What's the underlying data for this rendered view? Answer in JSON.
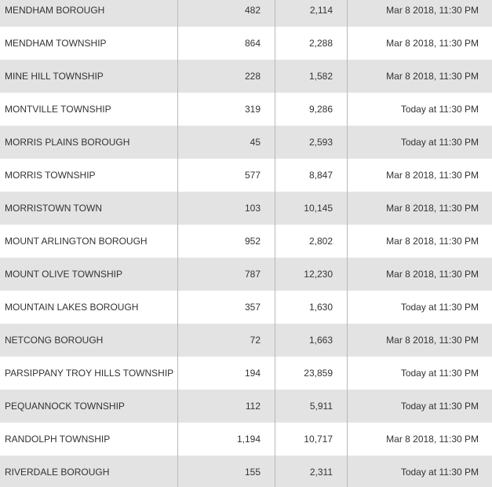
{
  "table": {
    "rows": [
      [
        "MENDHAM BOROUGH",
        "482",
        "2,114",
        "Mar 8 2018, 11:30 PM"
      ],
      [
        "MENDHAM TOWNSHIP",
        "864",
        "2,288",
        "Mar 8 2018, 11:30 PM"
      ],
      [
        "MINE HILL TOWNSHIP",
        "228",
        "1,582",
        "Mar 8 2018, 11:30 PM"
      ],
      [
        "MONTVILLE TOWNSHIP",
        "319",
        "9,286",
        "Today at 11:30 PM"
      ],
      [
        "MORRIS PLAINS BOROUGH",
        "45",
        "2,593",
        "Today at 11:30 PM"
      ],
      [
        "MORRIS TOWNSHIP",
        "577",
        "8,847",
        "Mar 8 2018, 11:30 PM"
      ],
      [
        "MORRISTOWN TOWN",
        "103",
        "10,145",
        "Mar 8 2018, 11:30 PM"
      ],
      [
        "MOUNT ARLINGTON BOROUGH",
        "952",
        "2,802",
        "Mar 8 2018, 11:30 PM"
      ],
      [
        "MOUNT OLIVE TOWNSHIP",
        "787",
        "12,230",
        "Mar 8 2018, 11:30 PM"
      ],
      [
        "MOUNTAIN LAKES BOROUGH",
        "357",
        "1,630",
        "Today at 11:30 PM"
      ],
      [
        "NETCONG BOROUGH",
        "72",
        "1,663",
        "Mar 8 2018, 11:30 PM"
      ],
      [
        "PARSIPPANY TROY HILLS TOWNSHIP",
        "194",
        "23,859",
        "Today at 11:30 PM"
      ],
      [
        "PEQUANNOCK TOWNSHIP",
        "112",
        "5,911",
        "Today at 11:30 PM"
      ],
      [
        "RANDOLPH TOWNSHIP",
        "1,194",
        "10,717",
        "Mar 8 2018, 11:30 PM"
      ],
      [
        "RIVERDALE BOROUGH",
        "155",
        "2,311",
        "Today at 11:30 PM"
      ]
    ]
  }
}
